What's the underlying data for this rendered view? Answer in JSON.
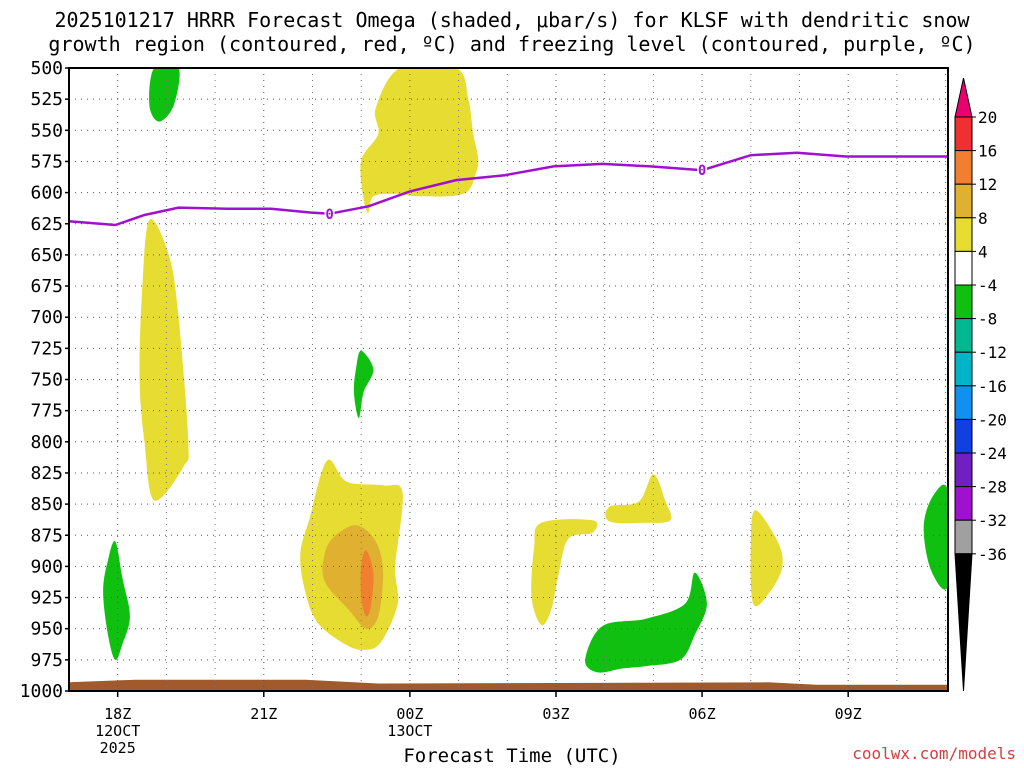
{
  "chart_data": {
    "type": "time-height",
    "title_line1": "2025101217 HRRR Forecast Omega (shaded, μbar/s) for KLSF with dendritic snow",
    "title_line2": "growth region (contoured, red, ºC) and freezing level (contoured, purple, ºC)",
    "xlabel": "Forecast Time (UTC)",
    "credit": "coolwx.com/models",
    "x_range_hours": [
      -0.35,
      17.7
    ],
    "y_range_mb": [
      500,
      1000
    ],
    "y_ticks": [
      500,
      525,
      550,
      575,
      600,
      625,
      650,
      675,
      700,
      725,
      750,
      775,
      800,
      825,
      850,
      875,
      900,
      925,
      950,
      975,
      1000
    ],
    "x_ticks": [
      {
        "hour": 0.65,
        "line1": "18Z",
        "line2": "12OCT",
        "line3": "2025"
      },
      {
        "hour": 3.65,
        "line1": "21Z",
        "line2": "",
        "line3": ""
      },
      {
        "hour": 6.65,
        "line1": "00Z",
        "line2": "13OCT",
        "line3": ""
      },
      {
        "hour": 9.65,
        "line1": "03Z",
        "line2": "",
        "line3": ""
      },
      {
        "hour": 12.65,
        "line1": "06Z",
        "line2": "",
        "line3": ""
      },
      {
        "hour": 15.65,
        "line1": "09Z",
        "line2": "",
        "line3": ""
      }
    ],
    "colorbar": {
      "labels": [
        "20",
        "16",
        "12",
        "8",
        "4",
        "-4",
        "-8",
        "-12",
        "-16",
        "-20",
        "-24",
        "-28",
        "-32",
        "-36"
      ],
      "colors": [
        "#e8006e",
        "#f03030",
        "#f08030",
        "#e0b030",
        "#e6dc32",
        "#ffffff",
        "#10c010",
        "#00b890",
        "#00b4c8",
        "#1090f0",
        "#1040e0",
        "#7020c0",
        "#a010d0",
        "#a0a0a0",
        "#000000"
      ]
    },
    "freezing_level": {
      "label": "0",
      "color": "#a010d0",
      "points": [
        {
          "hour": -0.35,
          "mb": 623
        },
        {
          "hour": 0.6,
          "mb": 626
        },
        {
          "hour": 1.2,
          "mb": 618
        },
        {
          "hour": 1.9,
          "mb": 612
        },
        {
          "hour": 2.9,
          "mb": 613
        },
        {
          "hour": 3.8,
          "mb": 613
        },
        {
          "hour": 4.6,
          "mb": 616
        },
        {
          "hour": 5.0,
          "mb": 617
        },
        {
          "hour": 5.8,
          "mb": 611
        },
        {
          "hour": 6.65,
          "mb": 599
        },
        {
          "hour": 7.6,
          "mb": 590
        },
        {
          "hour": 8.6,
          "mb": 586
        },
        {
          "hour": 9.6,
          "mb": 579
        },
        {
          "hour": 10.6,
          "mb": 577
        },
        {
          "hour": 11.6,
          "mb": 579
        },
        {
          "hour": 12.65,
          "mb": 582
        },
        {
          "hour": 13.65,
          "mb": 570
        },
        {
          "hour": 14.6,
          "mb": 568
        },
        {
          "hour": 15.6,
          "mb": 571
        },
        {
          "hour": 16.6,
          "mb": 571
        },
        {
          "hour": 17.7,
          "mb": 571
        }
      ],
      "label_positions": [
        {
          "hour": 5.0,
          "mb": 617
        },
        {
          "hour": 12.65,
          "mb": 582
        }
      ]
    },
    "omega_regions": [
      {
        "name": "omega-yellow-upper-center",
        "color": "#e6dc32",
        "pts": [
          [
            6.45,
            500
          ],
          [
            7.6,
            500
          ],
          [
            7.85,
            525
          ],
          [
            7.95,
            553
          ],
          [
            8.05,
            572
          ],
          [
            8.0,
            585
          ],
          [
            7.75,
            601
          ],
          [
            6.85,
            603
          ],
          [
            6.35,
            601
          ],
          [
            5.9,
            603
          ],
          [
            5.8,
            616
          ],
          [
            5.7,
            605
          ],
          [
            5.65,
            574
          ],
          [
            6.0,
            553
          ],
          [
            5.95,
            532
          ]
        ]
      },
      {
        "name": "omega-green-top",
        "color": "#10c010",
        "pts": [
          [
            1.4,
            500
          ],
          [
            1.9,
            500
          ],
          [
            1.8,
            530
          ],
          [
            1.5,
            543
          ],
          [
            1.3,
            530
          ]
        ]
      },
      {
        "name": "omega-yellow-left-column",
        "color": "#e6dc32",
        "pts": [
          [
            1.3,
            622
          ],
          [
            1.7,
            650
          ],
          [
            1.9,
            700
          ],
          [
            2.1,
            800
          ],
          [
            2.0,
            820
          ],
          [
            1.4,
            847
          ],
          [
            1.2,
            800
          ],
          [
            1.1,
            750
          ],
          [
            1.15,
            680
          ]
        ]
      },
      {
        "name": "omega-green-mid",
        "color": "#10c010",
        "pts": [
          [
            5.65,
            727
          ],
          [
            5.9,
            742
          ],
          [
            5.7,
            760
          ],
          [
            5.6,
            781
          ],
          [
            5.5,
            760
          ],
          [
            5.55,
            740
          ]
        ]
      },
      {
        "name": "omega-yellow-lower-center",
        "color": "#e6dc32",
        "pts": [
          [
            4.95,
            815
          ],
          [
            5.35,
            832
          ],
          [
            6.1,
            835
          ],
          [
            6.5,
            841
          ],
          [
            6.35,
            900
          ],
          [
            6.4,
            930
          ],
          [
            6.05,
            961
          ],
          [
            5.7,
            967
          ],
          [
            5.3,
            962
          ],
          [
            4.75,
            945
          ],
          [
            4.5,
            920
          ],
          [
            4.4,
            890
          ],
          [
            4.6,
            860
          ]
        ]
      },
      {
        "name": "omega-orange-lower-center",
        "color": "#e0b030",
        "pts": [
          [
            5.55,
            867
          ],
          [
            5.95,
            880
          ],
          [
            6.1,
            905
          ],
          [
            6.0,
            940
          ],
          [
            5.75,
            950
          ],
          [
            5.4,
            935
          ],
          [
            4.9,
            912
          ],
          [
            4.9,
            890
          ],
          [
            5.1,
            876
          ]
        ]
      },
      {
        "name": "omega-deep-orange-core",
        "color": "#f08030",
        "pts": [
          [
            5.75,
            887
          ],
          [
            5.9,
            905
          ],
          [
            5.85,
            932
          ],
          [
            5.75,
            940
          ],
          [
            5.65,
            925
          ],
          [
            5.65,
            900
          ]
        ]
      },
      {
        "name": "omega-green-lower-left",
        "color": "#10c010",
        "pts": [
          [
            0.6,
            880
          ],
          [
            0.75,
            910
          ],
          [
            0.9,
            940
          ],
          [
            0.75,
            962
          ],
          [
            0.6,
            975
          ],
          [
            0.45,
            955
          ],
          [
            0.35,
            920
          ],
          [
            0.45,
            895
          ]
        ]
      },
      {
        "name": "omega-yellow-03z",
        "color": "#e6dc32",
        "pts": [
          [
            9.35,
            865
          ],
          [
            10.4,
            863
          ],
          [
            10.4,
            873
          ],
          [
            9.9,
            878
          ],
          [
            9.7,
            907
          ],
          [
            9.55,
            935
          ],
          [
            9.35,
            947
          ],
          [
            9.15,
            925
          ],
          [
            9.2,
            885
          ]
        ]
      },
      {
        "name": "omega-yellow-05z",
        "color": "#e6dc32",
        "pts": [
          [
            10.75,
            852
          ],
          [
            11.35,
            848
          ],
          [
            11.65,
            826
          ],
          [
            11.9,
            848
          ],
          [
            12.0,
            863
          ],
          [
            11.5,
            865
          ],
          [
            10.75,
            864
          ]
        ]
      },
      {
        "name": "omega-green-05z",
        "color": "#10c010",
        "pts": [
          [
            12.5,
            905
          ],
          [
            12.75,
            930
          ],
          [
            12.5,
            955
          ],
          [
            12.2,
            975
          ],
          [
            11.5,
            980
          ],
          [
            11.0,
            982
          ],
          [
            10.5,
            985
          ],
          [
            10.25,
            975
          ],
          [
            10.6,
            948
          ],
          [
            11.5,
            942
          ],
          [
            12.3,
            930
          ]
        ]
      },
      {
        "name": "omega-yellow-07z",
        "color": "#e6dc32",
        "pts": [
          [
            13.75,
            855
          ],
          [
            14.2,
            880
          ],
          [
            14.3,
            900
          ],
          [
            14.05,
            920
          ],
          [
            13.7,
            930
          ],
          [
            13.65,
            880
          ]
        ]
      },
      {
        "name": "omega-green-right-edge",
        "color": "#10c010",
        "pts": [
          [
            17.7,
            840
          ],
          [
            17.7,
            915
          ],
          [
            17.35,
            903
          ],
          [
            17.2,
            868
          ],
          [
            17.4,
            843
          ]
        ]
      },
      {
        "name": "ground-terrain",
        "color": "#a05a2c",
        "pts": [
          [
            -0.35,
            993
          ],
          [
            1.0,
            991
          ],
          [
            4.5,
            991
          ],
          [
            6.0,
            994
          ],
          [
            14.0,
            993
          ],
          [
            15.0,
            995
          ],
          [
            17.7,
            995
          ],
          [
            17.7,
            1003
          ],
          [
            -0.35,
            1003
          ]
        ]
      }
    ]
  }
}
